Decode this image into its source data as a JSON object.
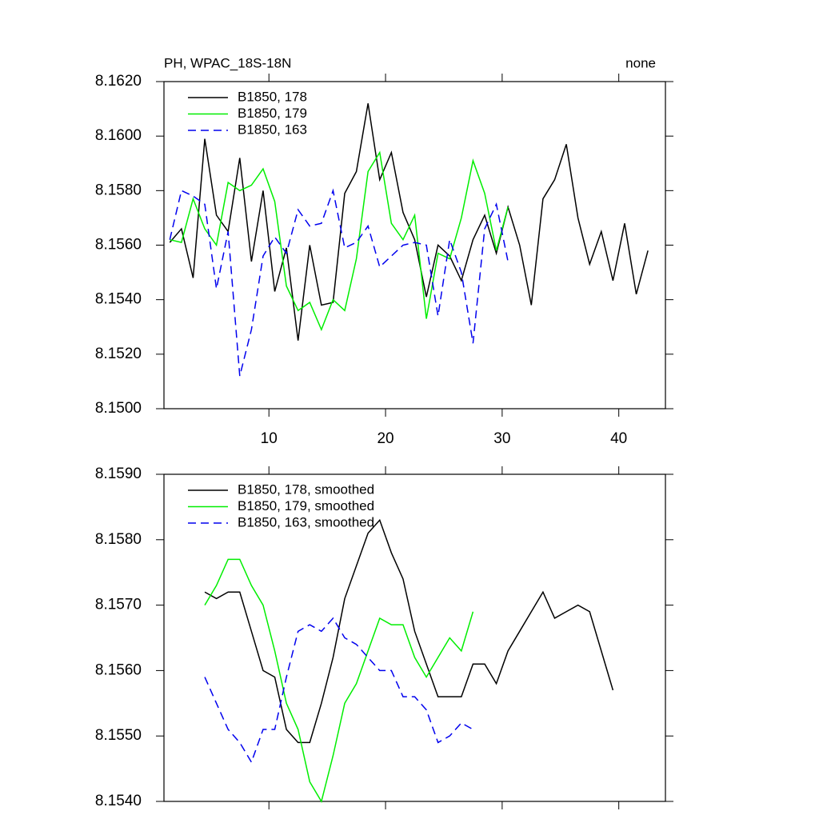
{
  "chart_data": [
    {
      "type": "line",
      "title": "PH, WPAC_18S-18N",
      "subtitle": "none",
      "x": [
        1.5,
        2.5,
        3.5,
        4.5,
        5.5,
        6.5,
        7.5,
        8.5,
        9.5,
        10.5,
        11.5,
        12.5,
        13.5,
        14.5,
        15.5,
        16.5,
        17.5,
        18.5,
        19.5,
        20.5,
        21.5,
        22.5,
        23.5,
        24.5,
        25.5,
        26.5,
        27.5,
        28.5,
        29.5,
        30.5,
        31.5,
        32.5,
        33.5,
        34.5,
        35.5,
        36.5,
        37.5,
        38.5,
        39.5,
        40.5,
        41.5,
        42.5
      ],
      "series": [
        {
          "name": "B1850, 178",
          "color": "#000000",
          "line_style": "solid",
          "values": [
            8.1561,
            8.1566,
            8.1548,
            8.1599,
            8.1571,
            8.1565,
            8.1592,
            8.1554,
            8.158,
            8.1543,
            8.1559,
            8.1525,
            8.156,
            8.1538,
            8.1539,
            8.1579,
            8.1587,
            8.1612,
            8.1584,
            8.1594,
            8.1572,
            8.1562,
            8.1541,
            8.156,
            8.1556,
            8.1547,
            8.1562,
            8.1571,
            8.1557,
            8.1574,
            8.156,
            8.1538,
            8.1577,
            8.1584,
            8.1597,
            8.157,
            8.1553,
            8.1565,
            8.1547,
            8.1568,
            8.1542,
            8.1558
          ]
        },
        {
          "name": "B1850, 179",
          "color": "#00ee00",
          "line_style": "solid",
          "values": [
            8.1562,
            8.1561,
            8.1577,
            8.1566,
            8.156,
            8.1583,
            8.158,
            8.1582,
            8.1588,
            8.1576,
            8.1545,
            8.1536,
            8.1539,
            8.1529,
            8.154,
            8.1536,
            8.1555,
            8.1587,
            8.1594,
            8.1568,
            8.1562,
            8.1571,
            8.1533,
            8.1557,
            8.1555,
            8.157,
            8.1591,
            8.1579,
            8.1558,
            8.1574,
            null,
            null,
            null,
            null,
            null,
            null,
            null,
            null,
            null,
            null,
            null,
            null
          ]
        },
        {
          "name": "B1850, 163",
          "color": "#0000ee",
          "line_style": "dashed",
          "values": [
            8.1562,
            8.158,
            8.1578,
            8.1575,
            8.1544,
            8.1565,
            8.1512,
            8.1529,
            8.1556,
            8.1563,
            8.1557,
            8.1573,
            8.1567,
            8.1568,
            8.158,
            8.1559,
            8.1561,
            8.1567,
            8.1552,
            8.1556,
            8.156,
            8.1561,
            8.156,
            8.1534,
            8.1562,
            8.155,
            8.1524,
            8.1566,
            8.1575,
            8.1554,
            null,
            null,
            null,
            null,
            null,
            null,
            null,
            null,
            null,
            null,
            null,
            null
          ]
        }
      ],
      "xlim": [
        1,
        44
      ],
      "xticks": [
        10,
        20,
        30,
        40
      ],
      "show_xtick_labels": true,
      "ylim": [
        8.15,
        8.162
      ],
      "yticks": [
        {
          "value": 8.15,
          "label": "8.1500"
        },
        {
          "value": 8.152,
          "label": "8.1520"
        },
        {
          "value": 8.154,
          "label": "8.1540"
        },
        {
          "value": 8.156,
          "label": "8.1560"
        },
        {
          "value": 8.158,
          "label": "8.1580"
        },
        {
          "value": 8.16,
          "label": "8.1600"
        },
        {
          "value": 8.162,
          "label": "8.1620"
        }
      ],
      "legend": "top-left"
    },
    {
      "type": "line",
      "x": [
        4.5,
        5.5,
        6.5,
        7.5,
        8.5,
        9.5,
        10.5,
        11.5,
        12.5,
        13.5,
        14.5,
        15.5,
        16.5,
        17.5,
        18.5,
        19.5,
        20.5,
        21.5,
        22.5,
        23.5,
        24.5,
        25.5,
        26.5,
        27.5,
        28.5,
        29.5,
        30.5,
        31.5,
        32.5,
        33.5,
        34.5,
        35.5,
        36.5,
        37.5,
        38.5,
        39.5
      ],
      "series": [
        {
          "name": "B1850, 178, smoothed",
          "color": "#000000",
          "line_style": "solid",
          "values": [
            8.1572,
            8.1571,
            8.1572,
            8.1572,
            8.1566,
            8.156,
            8.1559,
            8.1551,
            8.1549,
            8.1549,
            8.1555,
            8.1562,
            8.1571,
            8.1576,
            8.1581,
            8.1583,
            8.1578,
            8.1574,
            8.1566,
            8.1561,
            8.1556,
            8.1556,
            8.1556,
            8.1561,
            8.1561,
            8.1558,
            8.1563,
            8.1566,
            8.1569,
            8.1572,
            8.1568,
            8.1569,
            8.157,
            8.1569,
            8.1563,
            8.1557
          ]
        },
        {
          "name": "B1850, 179, smoothed",
          "color": "#00ee00",
          "line_style": "solid",
          "values": [
            8.157,
            8.1573,
            8.1577,
            8.1577,
            8.1573,
            8.157,
            8.1563,
            8.1555,
            8.1551,
            8.1543,
            8.154,
            8.1547,
            8.1555,
            8.1558,
            8.1563,
            8.1568,
            8.1567,
            8.1567,
            8.1562,
            8.1559,
            8.1562,
            8.1565,
            8.1563,
            8.1569,
            null,
            null,
            null,
            null,
            null,
            null,
            null,
            null,
            null,
            null,
            null,
            null
          ]
        },
        {
          "name": "B1850, 163, smoothed",
          "color": "#0000ee",
          "line_style": "dashed",
          "values": [
            8.1559,
            8.1555,
            8.1551,
            8.1549,
            8.1546,
            8.1551,
            8.1551,
            8.1559,
            8.1566,
            8.1567,
            8.1566,
            8.1568,
            8.1565,
            8.1564,
            8.1562,
            8.156,
            8.156,
            8.1556,
            8.1556,
            8.1554,
            8.1549,
            8.155,
            8.1552,
            8.1551,
            null,
            null,
            null,
            null,
            null,
            null,
            null,
            null,
            null,
            null,
            null,
            null
          ]
        }
      ],
      "xlim": [
        1,
        44
      ],
      "xticks": [
        10,
        20,
        30,
        40
      ],
      "show_xtick_labels": false,
      "ylim": [
        8.154,
        8.159
      ],
      "yticks": [
        {
          "value": 8.154,
          "label": "8.1540"
        },
        {
          "value": 8.155,
          "label": "8.1550"
        },
        {
          "value": 8.156,
          "label": "8.1560"
        },
        {
          "value": 8.157,
          "label": "8.1570"
        },
        {
          "value": 8.158,
          "label": "8.1580"
        },
        {
          "value": 8.159,
          "label": "8.1590"
        }
      ],
      "legend": "top-left"
    }
  ]
}
